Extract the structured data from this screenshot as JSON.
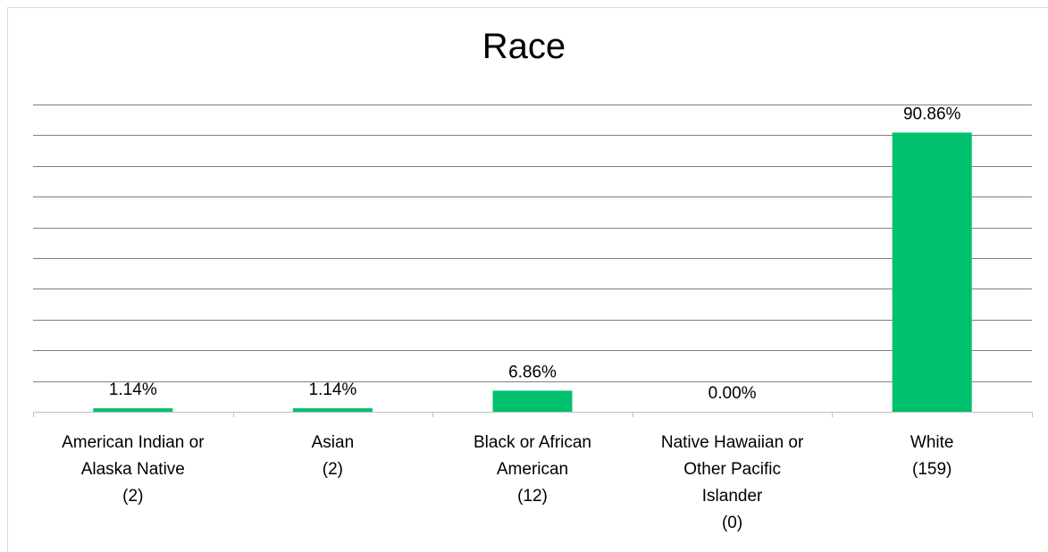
{
  "chart_data": {
    "type": "bar",
    "title": "Race",
    "categories": [
      [
        "American Indian or",
        "Alaska Native",
        "(2)"
      ],
      [
        "Asian",
        "(2)"
      ],
      [
        "Black or African",
        "American",
        "(12)"
      ],
      [
        "Native Hawaiian or",
        "Other Pacific",
        "Islander",
        "(0)"
      ],
      [
        "White",
        "(159)"
      ]
    ],
    "values": [
      1.14,
      1.14,
      6.86,
      0.0,
      90.86
    ],
    "value_labels": [
      "1.14%",
      "1.14%",
      "6.86%",
      "0.00%",
      "90.86%"
    ],
    "ylim": [
      0,
      100
    ],
    "gridlines": 10,
    "grid": true,
    "bar_color": "#00c06b",
    "gridline_color": "#808080"
  }
}
